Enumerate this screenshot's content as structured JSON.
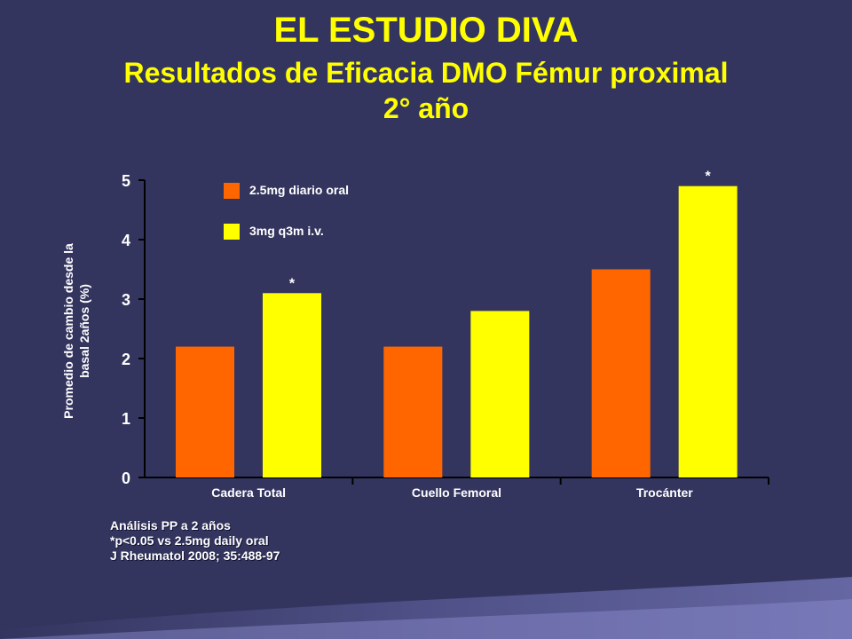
{
  "slide": {
    "title": "EL ESTUDIO DIVA",
    "subtitle_line1": "Resultados de Eficacia DMO Fémur proximal",
    "subtitle_line2": "2° año"
  },
  "colors": {
    "background": "#34355f",
    "title": "#ffff00",
    "series_oral": "#ff6600",
    "series_iv": "#ffff00",
    "axis_text": "#ffffff"
  },
  "chart_data": {
    "type": "bar",
    "categories": [
      "Cadera Total",
      "Cuello Femoral",
      "Trocánter"
    ],
    "series": [
      {
        "name": "2.5mg diario oral",
        "values": [
          2.2,
          2.2,
          3.5
        ],
        "color": "#ff6600",
        "markers": [
          "",
          "",
          ""
        ]
      },
      {
        "name": "3mg q3m i.v.",
        "values": [
          3.1,
          2.8,
          4.9
        ],
        "color": "#ffff00",
        "markers": [
          "*",
          "",
          "*"
        ]
      }
    ],
    "ylabel_lines": [
      "Promedio de cambio desde la",
      "basal 2años (%)"
    ],
    "ylim": [
      0,
      5
    ],
    "yticks": [
      "0",
      "1",
      "2",
      "3",
      "4",
      "5"
    ],
    "legend_position": "top-left",
    "grid": false
  },
  "footnotes": [
    "Análisis PP a 2 años",
    "*p<0.05 vs 2.5mg daily oral",
    "J Rheumatol 2008; 35:488-97"
  ]
}
